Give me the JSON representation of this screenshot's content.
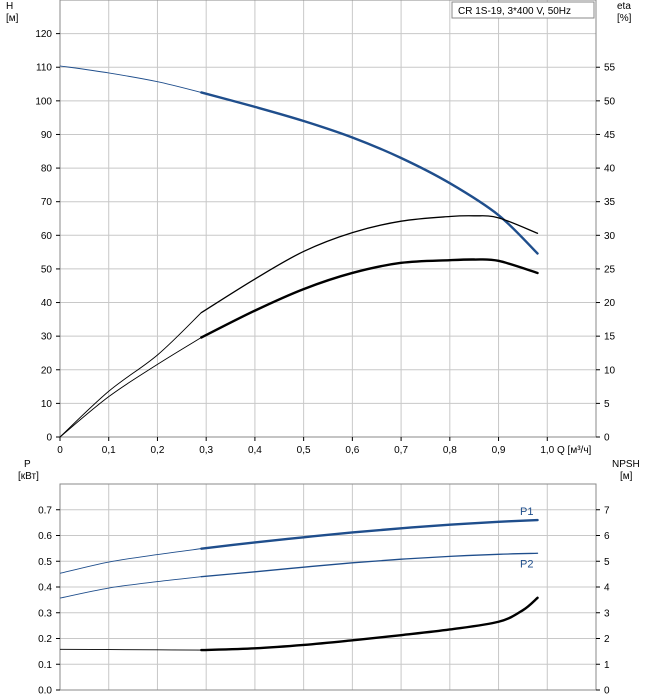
{
  "chart_data": [
    {
      "type": "line",
      "title": "CR 1S-19, 3*400 V, 50Hz",
      "xlabel": "Q [м³/ч]",
      "x_ticks": [
        "0",
        "0,1",
        "0,2",
        "0,3",
        "0,4",
        "0,5",
        "0,6",
        "0,7",
        "0,8",
        "0,9",
        "1,0"
      ],
      "xlim": [
        0,
        1.1
      ],
      "left_axis": {
        "label_line1": "H",
        "label_line2": "[м]",
        "ylim": [
          0,
          130
        ],
        "ticks": [
          0,
          10,
          20,
          30,
          40,
          50,
          60,
          70,
          80,
          90,
          100,
          110,
          120
        ]
      },
      "right_axis": {
        "label_line1": "eta",
        "label_line2": "[%]",
        "ylim": [
          0,
          65
        ],
        "ticks": [
          0,
          5,
          10,
          15,
          20,
          25,
          30,
          35,
          40,
          45,
          50,
          55
        ]
      },
      "grid": true,
      "series": [
        {
          "axis": "left",
          "color": "#1f4e8c",
          "x": [
            0,
            0.1,
            0.2,
            0.29,
            0.4,
            0.5,
            0.6,
            0.7,
            0.8,
            0.9,
            0.98
          ],
          "y": [
            110.4,
            108.3,
            105.7,
            102.5,
            98.2,
            94.0,
            89.1,
            83.0,
            75.5,
            66.0,
            54.6
          ],
          "bold_from_x": 0.29
        },
        {
          "axis": "right",
          "color": "#000000",
          "x": [
            0,
            0.1,
            0.2,
            0.29,
            0.4,
            0.5,
            0.6,
            0.7,
            0.8,
            0.85,
            0.9,
            0.98
          ],
          "y": [
            0,
            6.8,
            12.2,
            18.5,
            23.5,
            27.6,
            30.4,
            32.1,
            32.8,
            32.9,
            32.6,
            30.3
          ],
          "bold_from_x": 0.29,
          "bold_width": 1.3
        },
        {
          "axis": "right",
          "color": "#000000",
          "x": [
            0,
            0.1,
            0.2,
            0.29,
            0.4,
            0.5,
            0.6,
            0.7,
            0.8,
            0.85,
            0.9,
            0.98
          ],
          "y": [
            0,
            6.0,
            10.8,
            14.8,
            18.8,
            22.0,
            24.4,
            25.9,
            26.3,
            26.4,
            26.2,
            24.4
          ],
          "bold_from_x": 0.29,
          "bold_width": 2.4
        }
      ]
    },
    {
      "type": "line",
      "xlim": [
        0,
        1.1
      ],
      "left_axis": {
        "label_line1": "P",
        "label_line2": "[кВт]",
        "ylim": [
          0,
          0.8
        ],
        "ticks": [
          "0.0",
          "0.1",
          "0.2",
          "0.3",
          "0.4",
          "0.5",
          "0.6",
          "0.7"
        ]
      },
      "right_axis": {
        "label_line1": "NPSH",
        "label_line2": "[м]",
        "ylim": [
          0,
          8
        ],
        "ticks": [
          "0",
          "1",
          "2",
          "3",
          "4",
          "5",
          "6",
          "7"
        ]
      },
      "grid": true,
      "series": [
        {
          "name": "P1",
          "axis": "left",
          "color": "#1f4e8c",
          "x": [
            0,
            0.1,
            0.2,
            0.29,
            0.4,
            0.5,
            0.6,
            0.7,
            0.8,
            0.9,
            0.98
          ],
          "y": [
            0.453,
            0.497,
            0.526,
            0.549,
            0.573,
            0.593,
            0.612,
            0.628,
            0.642,
            0.653,
            0.66
          ],
          "bold_from_x": 0.29
        },
        {
          "name": "P2",
          "axis": "left",
          "color": "#1f4e8c",
          "x": [
            0,
            0.1,
            0.2,
            0.29,
            0.4,
            0.5,
            0.6,
            0.7,
            0.8,
            0.9,
            0.98
          ],
          "y": [
            0.357,
            0.396,
            0.421,
            0.44,
            0.459,
            0.477,
            0.494,
            0.508,
            0.519,
            0.527,
            0.531
          ],
          "bold_from_x": 0.29,
          "bold_width": 1.3
        },
        {
          "axis": "right",
          "color": "#000000",
          "x": [
            0,
            0.1,
            0.2,
            0.29,
            0.4,
            0.5,
            0.6,
            0.7,
            0.8,
            0.9,
            0.95,
            0.98
          ],
          "y": [
            1.58,
            1.57,
            1.56,
            1.55,
            1.62,
            1.75,
            1.93,
            2.13,
            2.35,
            2.65,
            3.1,
            3.58
          ],
          "bold_from_x": 0.29,
          "bold_width": 2.4
        }
      ]
    }
  ]
}
